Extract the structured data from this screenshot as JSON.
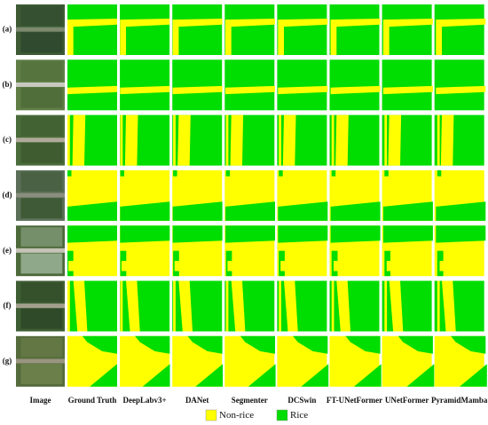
{
  "figure": {
    "rows": [
      "(a)",
      "(b)",
      "(c)",
      "(d)",
      "(e)",
      "(f)",
      "(g)"
    ],
    "columns": [
      "Image",
      "Ground Truth",
      "DeepLabv3+",
      "DANet",
      "Segmenter",
      "DCSwin",
      "FT-UNetFormer",
      "UNetFormer",
      "PyramidMamba"
    ],
    "legend": [
      {
        "label": "Non-rice",
        "color": "#ffff00"
      },
      {
        "label": "Rice",
        "color": "#00dd00"
      }
    ]
  }
}
